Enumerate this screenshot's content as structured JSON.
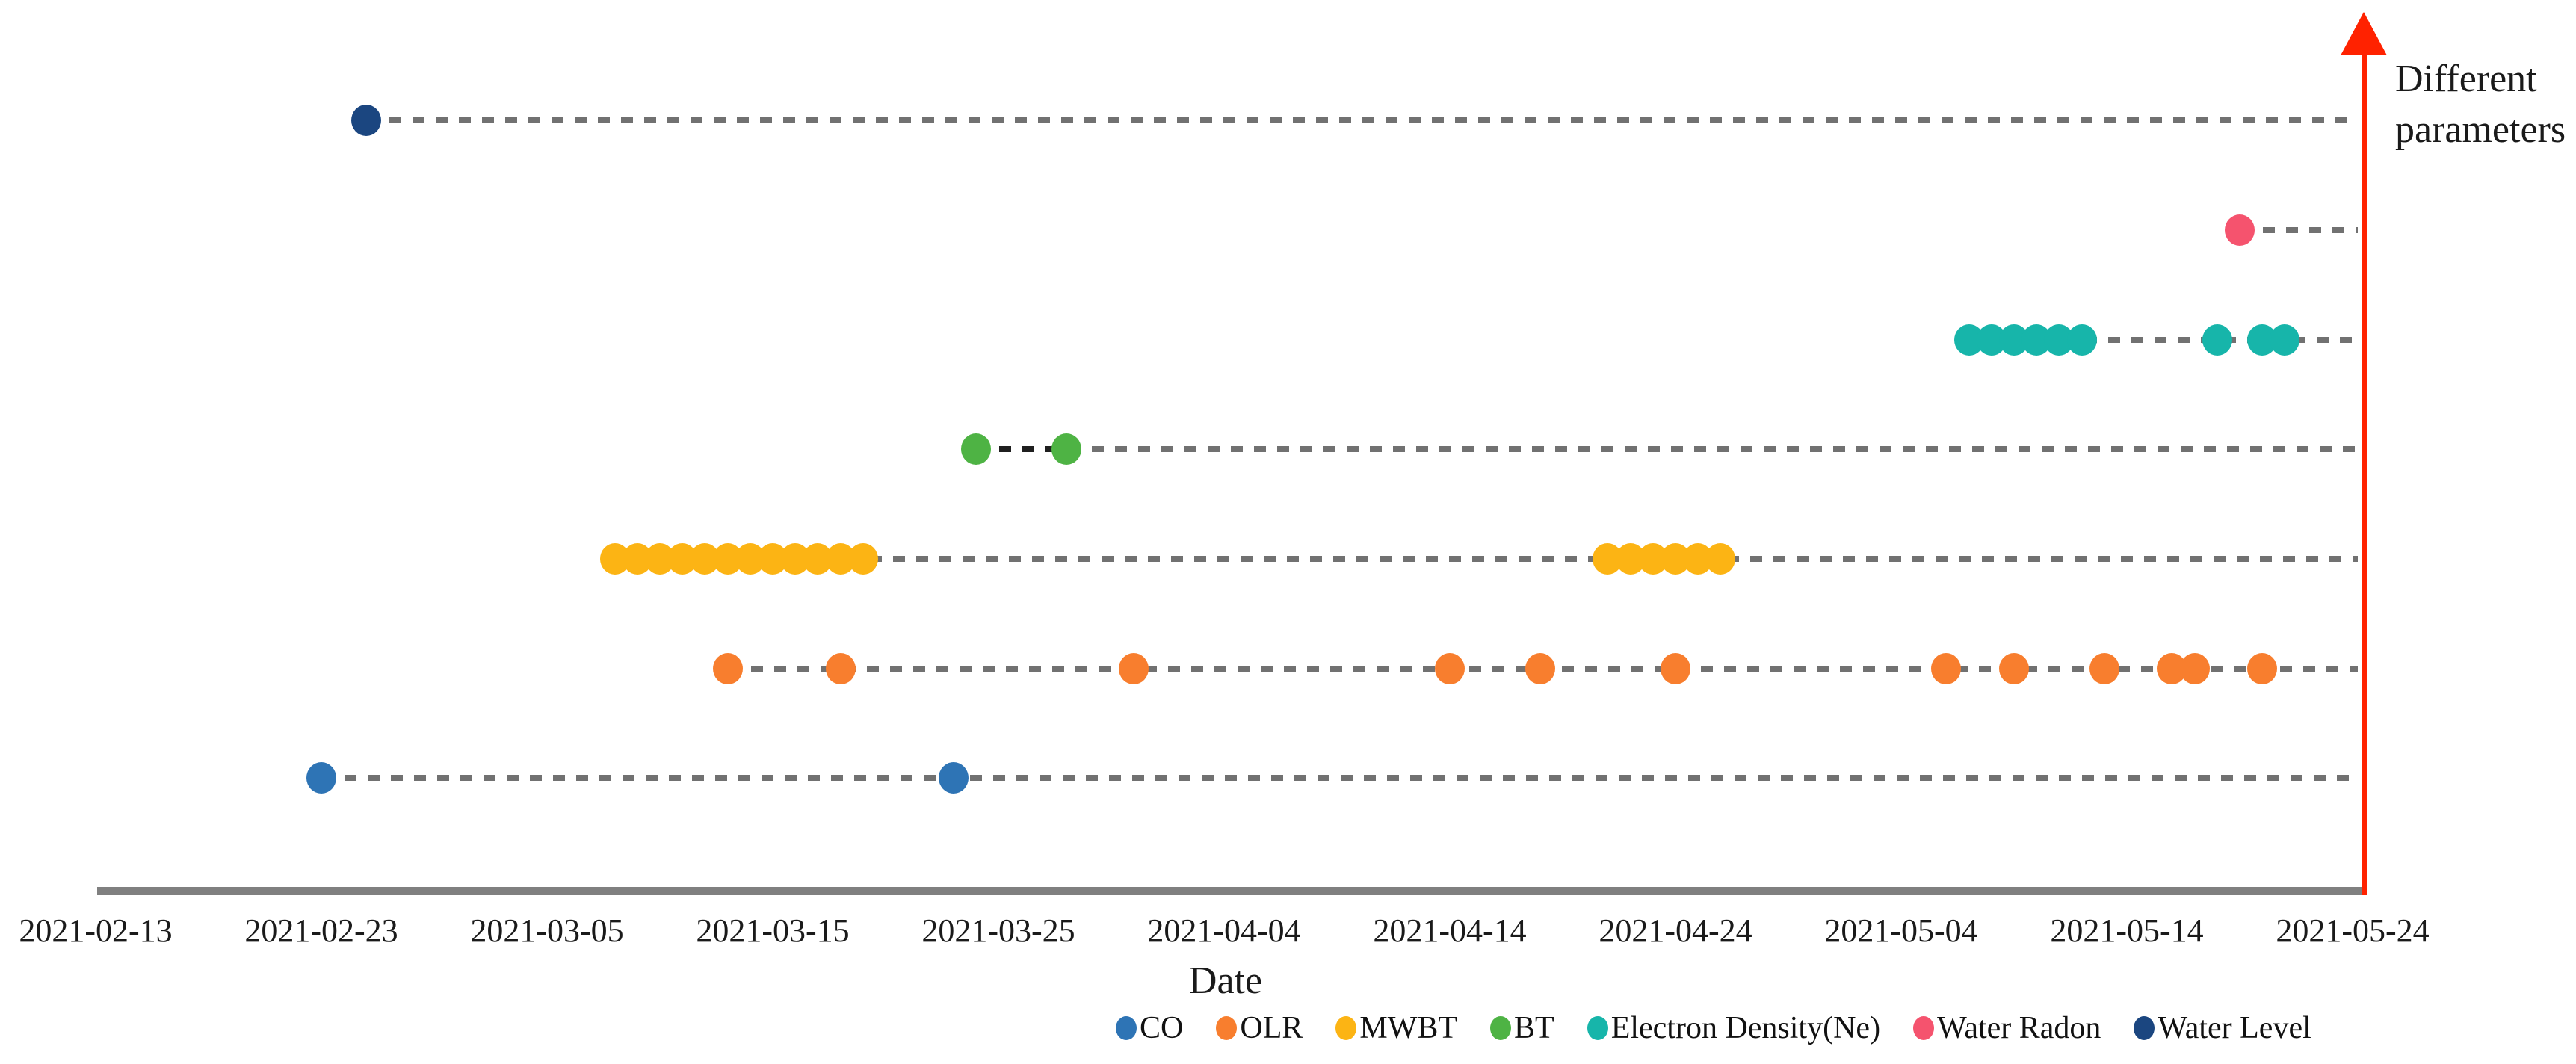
{
  "chart_data": {
    "type": "scatter",
    "title": "",
    "xlabel": "Date",
    "ylabel": "Different parameters",
    "ylabel_line1": "Different",
    "ylabel_line2": "parameters",
    "x_range": [
      "2021-02-13",
      "2021-05-24"
    ],
    "x_tick_labels": [
      "2021-02-13",
      "2021-02-23",
      "2021-03-05",
      "2021-03-15",
      "2021-03-25",
      "2021-04-04",
      "2021-04-14",
      "2021-04-24",
      "2021-05-04",
      "2021-05-14",
      "2021-05-24"
    ],
    "grid": "each parameter has its own horizontal dashed guide line ending at the red vertical arrow axis",
    "legend_position": "bottom",
    "axis_colors": {
      "x_axis_gray": "#808080",
      "dash_gray": "#717171",
      "arrow_red": "#ff2200",
      "bt_connector_black": "#1f1f1f"
    },
    "series": [
      {
        "name": "Water Level",
        "color": "#1b4680",
        "row": 0,
        "dates": [
          "2021-02-25"
        ]
      },
      {
        "name": "Water Radon",
        "color": "#f5536e",
        "row": 1,
        "dates": [
          "2021-05-19"
        ]
      },
      {
        "name": "Electron Density(Ne)",
        "color": "#17b5aa",
        "row": 2,
        "dates": [
          "2021-05-07",
          "2021-05-08",
          "2021-05-09",
          "2021-05-10",
          "2021-05-11",
          "2021-05-12",
          "2021-05-18",
          "2021-05-20",
          "2021-05-21"
        ]
      },
      {
        "name": "BT",
        "color": "#4eb344",
        "row": 3,
        "dates": [
          "2021-03-24",
          "2021-03-28"
        ],
        "connector": {
          "from": "2021-03-24",
          "to": "2021-03-28",
          "color": "#1f1f1f"
        }
      },
      {
        "name": "MWBT",
        "color": "#fcb414",
        "row": 4,
        "dates": [
          "2021-03-08",
          "2021-03-09",
          "2021-03-10",
          "2021-03-11",
          "2021-03-12",
          "2021-03-13",
          "2021-03-14",
          "2021-03-15",
          "2021-03-16",
          "2021-03-17",
          "2021-03-18",
          "2021-03-19",
          "2021-04-21",
          "2021-04-22",
          "2021-04-23",
          "2021-04-24",
          "2021-04-25",
          "2021-04-26"
        ]
      },
      {
        "name": "OLR",
        "color": "#f87e2e",
        "row": 5,
        "dates": [
          "2021-03-13",
          "2021-03-18",
          "2021-03-31",
          "2021-04-14",
          "2021-04-18",
          "2021-04-24",
          "2021-05-06",
          "2021-05-09",
          "2021-05-13",
          "2021-05-16",
          "2021-05-17",
          "2021-05-20"
        ]
      },
      {
        "name": "CO",
        "color": "#2e74b5",
        "row": 6,
        "dates": [
          "2021-02-23",
          "2021-03-23"
        ]
      }
    ],
    "legend": [
      {
        "label": "CO",
        "color": "#2e74b5"
      },
      {
        "label": "OLR",
        "color": "#f87e2e"
      },
      {
        "label": "MWBT",
        "color": "#fcb414"
      },
      {
        "label": "BT",
        "color": "#4eb344"
      },
      {
        "label": "Electron Density(Ne)",
        "color": "#17b5aa"
      },
      {
        "label": "Water Radon",
        "color": "#f5536e"
      },
      {
        "label": "Water Level",
        "color": "#1b4680"
      }
    ]
  }
}
